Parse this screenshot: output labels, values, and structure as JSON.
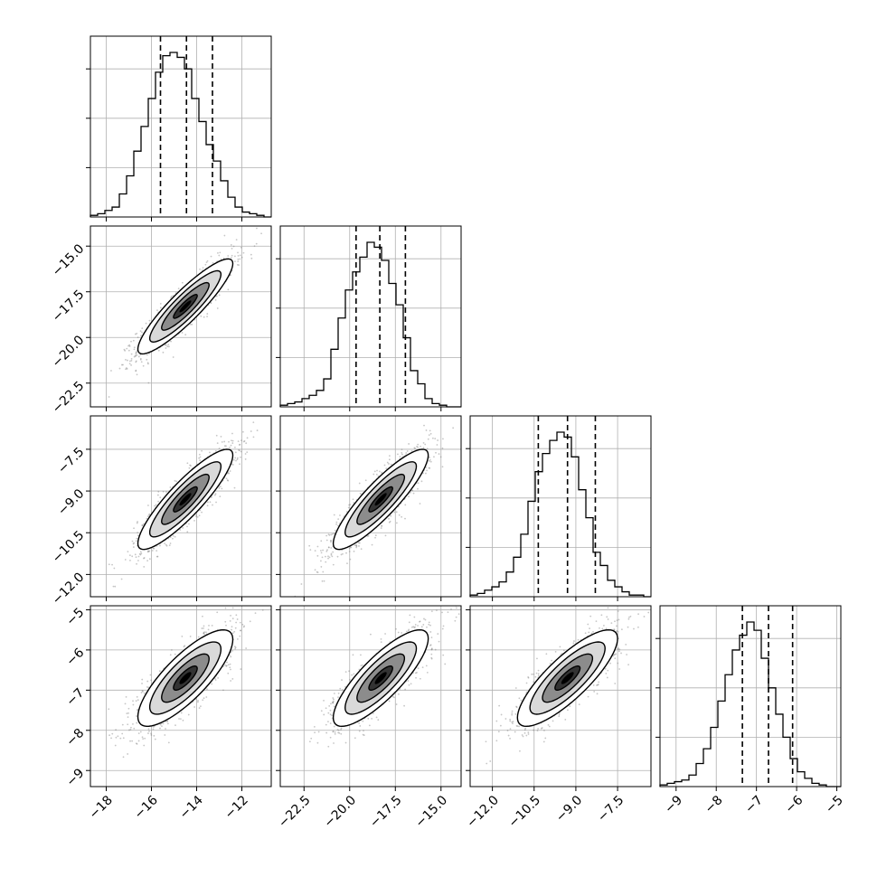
{
  "chart_data": {
    "type": "corner",
    "title": "",
    "grid": true,
    "parameters": [
      {
        "index": 0,
        "range": [
          -18.7,
          -10.7
        ],
        "quantiles": [
          -15.6,
          -14.45,
          -13.3
        ],
        "tick_values": [
          -18,
          -16,
          -14,
          -12
        ],
        "tick_labels": [
          "−18",
          "−16",
          "−14",
          "−12"
        ]
      },
      {
        "index": 1,
        "range": [
          -23.8,
          -13.9
        ],
        "quantiles": [
          -19.65,
          -18.35,
          -16.95
        ],
        "tick_values": [
          -22.5,
          -20.0,
          -17.5,
          -15.0
        ],
        "tick_labels": [
          "−22.5",
          "−20.0",
          "−17.5",
          "−15.0"
        ]
      },
      {
        "index": 2,
        "range": [
          -12.8,
          -6.3
        ],
        "quantiles": [
          -10.35,
          -9.3,
          -8.3
        ],
        "tick_values": [
          -12.0,
          -10.5,
          -9.0,
          -7.5
        ],
        "tick_labels": [
          "−12.0",
          "−10.5",
          "−9.0",
          "−7.5"
        ]
      },
      {
        "index": 3,
        "range": [
          -9.4,
          -4.9
        ],
        "quantiles": [
          -7.35,
          -6.7,
          -6.1
        ],
        "tick_values": [
          -9,
          -8,
          -7,
          -6,
          -5
        ],
        "tick_labels": [
          "−9",
          "−8",
          "−7",
          "−6",
          "−5"
        ]
      }
    ],
    "histograms": [
      {
        "param": 0,
        "bin_edges_range": [
          -18.7,
          -10.7
        ],
        "counts": [
          1,
          2,
          4,
          6,
          14,
          25,
          40,
          55,
          72,
          88,
          98,
          100,
          97,
          90,
          72,
          58,
          44,
          34,
          22,
          12,
          6,
          3,
          2,
          1,
          0
        ]
      },
      {
        "param": 1,
        "bin_edges_range": [
          -23.8,
          -13.9
        ],
        "counts": [
          1,
          2,
          3,
          5,
          7,
          10,
          17,
          35,
          54,
          71,
          82,
          91,
          100,
          97,
          89,
          75,
          62,
          42,
          22,
          14,
          5,
          2,
          1,
          0,
          0
        ]
      },
      {
        "param": 2,
        "bin_edges_range": [
          -12.8,
          -6.3
        ],
        "counts": [
          1,
          2,
          4,
          6,
          9,
          15,
          24,
          38,
          58,
          76,
          87,
          95,
          100,
          97,
          85,
          65,
          48,
          27,
          19,
          10,
          6,
          3,
          1,
          1,
          0
        ]
      },
      {
        "param": 3,
        "bin_edges_range": [
          -9.4,
          -4.9
        ],
        "counts": [
          1,
          2,
          3,
          4,
          7,
          14,
          23,
          36,
          52,
          68,
          83,
          92,
          100,
          95,
          78,
          60,
          44,
          30,
          17,
          9,
          5,
          2,
          1,
          0,
          0
        ]
      }
    ],
    "pairs": [
      {
        "x_param": 0,
        "y_param": 1,
        "mean": [
          -14.5,
          -18.3
        ],
        "sd": [
          1.05,
          1.3
        ],
        "corr": 0.9
      },
      {
        "x_param": 0,
        "y_param": 2,
        "mean": [
          -14.5,
          -9.3
        ],
        "sd": [
          1.05,
          0.9
        ],
        "corr": 0.88
      },
      {
        "x_param": 1,
        "y_param": 2,
        "mean": [
          -18.3,
          -9.3
        ],
        "sd": [
          1.3,
          0.9
        ],
        "corr": 0.88
      },
      {
        "x_param": 0,
        "y_param": 3,
        "mean": [
          -14.5,
          -6.7
        ],
        "sd": [
          1.05,
          0.6
        ],
        "corr": 0.8
      },
      {
        "x_param": 1,
        "y_param": 3,
        "mean": [
          -18.3,
          -6.7
        ],
        "sd": [
          1.3,
          0.6
        ],
        "corr": 0.82
      },
      {
        "x_param": 2,
        "y_param": 3,
        "mean": [
          -9.3,
          -6.7
        ],
        "sd": [
          0.9,
          0.6
        ],
        "corr": 0.82
      }
    ],
    "contour_levels_sigma": [
      0.5,
      1.0,
      1.5,
      2.0
    ],
    "colors": {
      "line": "#000000",
      "grid": "#b0b0b0",
      "points": "#808080",
      "panel_border": "#000000"
    }
  }
}
